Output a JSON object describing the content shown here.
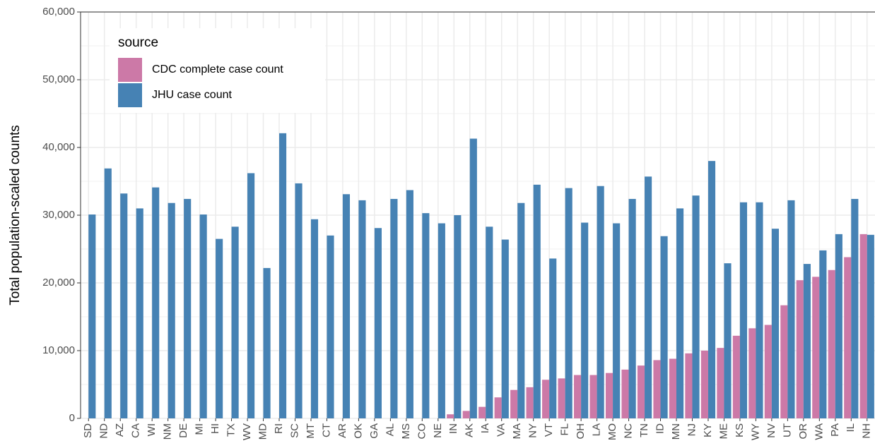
{
  "chart_data": {
    "type": "bar",
    "y_label": "Total population-scaled counts",
    "legend_title": "source",
    "categories": [
      "SD",
      "ND",
      "AZ",
      "CA",
      "WI",
      "NM",
      "DE",
      "MI",
      "HI",
      "TX",
      "WV",
      "MD",
      "RI",
      "SC",
      "MT",
      "CT",
      "AR",
      "OK",
      "GA",
      "AL",
      "MS",
      "CO",
      "NE",
      "IN",
      "AK",
      "IA",
      "VA",
      "MA",
      "NY",
      "VT",
      "FL",
      "OH",
      "LA",
      "MO",
      "NC",
      "TN",
      "ID",
      "MN",
      "NJ",
      "KY",
      "ME",
      "KS",
      "WY",
      "NV",
      "UT",
      "OR",
      "WA",
      "PA",
      "IL",
      "NH"
    ],
    "series": [
      {
        "name": "CDC complete case count",
        "color": "#cc79a7",
        "values": [
          0,
          0,
          0,
          0,
          0,
          0,
          0,
          0,
          0,
          0,
          0,
          0,
          0,
          0,
          0,
          0,
          0,
          0,
          0,
          0,
          0,
          0,
          0,
          600,
          1100,
          1700,
          3100,
          4200,
          4600,
          5700,
          5900,
          6400,
          6400,
          6700,
          7200,
          7800,
          8600,
          8800,
          9600,
          10000,
          10400,
          12200,
          13300,
          13800,
          16700,
          20400,
          20900,
          21900,
          23800,
          27200
        ]
      },
      {
        "name": "JHU case count",
        "color": "#4682b4",
        "values": [
          30100,
          36900,
          33200,
          31000,
          34100,
          31800,
          32400,
          30100,
          26500,
          28300,
          36200,
          22200,
          42100,
          34700,
          29400,
          27000,
          33100,
          32200,
          28100,
          32400,
          33700,
          30300,
          28800,
          30000,
          41300,
          28300,
          26400,
          31800,
          34500,
          23600,
          34000,
          28900,
          34300,
          28800,
          32400,
          35700,
          26900,
          31000,
          32900,
          38000,
          22900,
          31900,
          31900,
          28000,
          32200,
          22800,
          24800,
          27200,
          32400,
          27100
        ]
      }
    ],
    "ylim": [
      0,
      60000
    ],
    "yticks": [
      0,
      {
        "value": 10000,
        "label": "10,000"
      },
      {
        "value": 20000,
        "label": "20,000"
      },
      {
        "value": 30000,
        "label": "30,000"
      },
      {
        "value": 40000,
        "label": "40,000"
      },
      {
        "value": 50000,
        "label": "50,000"
      },
      {
        "value": 60000,
        "label": "60,000"
      }
    ],
    "grid": true,
    "legend_position": "top-left"
  }
}
